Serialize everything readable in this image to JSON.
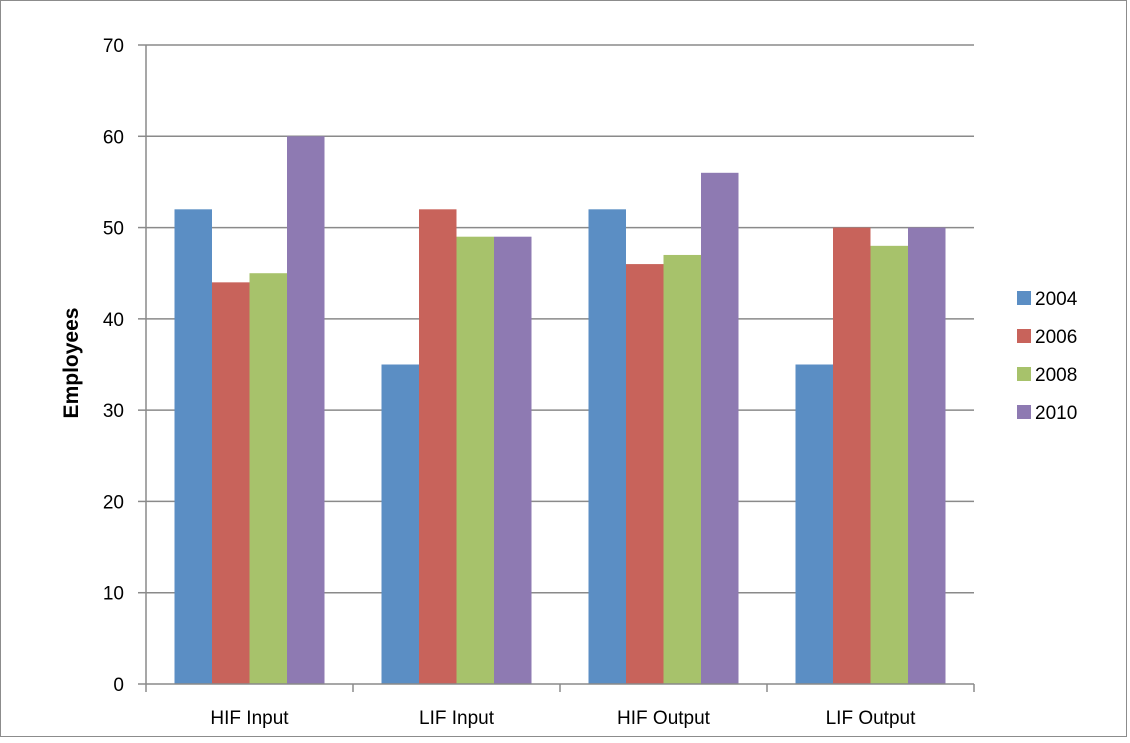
{
  "chart_data": {
    "type": "bar",
    "title": "",
    "xlabel": "",
    "ylabel": "Employees",
    "ylim": [
      0,
      70
    ],
    "yticks": [
      0,
      10,
      20,
      30,
      40,
      50,
      60,
      70
    ],
    "categories": [
      "HIF Input",
      "LIF Input",
      "HIF Output",
      "LIF Output"
    ],
    "series": [
      {
        "name": "2004",
        "color": "#5b8ec4",
        "values": [
          52,
          35,
          52,
          35
        ]
      },
      {
        "name": "2006",
        "color": "#c8635b",
        "values": [
          44,
          52,
          46,
          50
        ]
      },
      {
        "name": "2008",
        "color": "#a7c26b",
        "values": [
          45,
          49,
          47,
          48
        ]
      },
      {
        "name": "2010",
        "color": "#8e7ab2",
        "values": [
          60,
          49,
          56,
          50
        ]
      }
    ],
    "grid": true,
    "legend_position": "right"
  }
}
